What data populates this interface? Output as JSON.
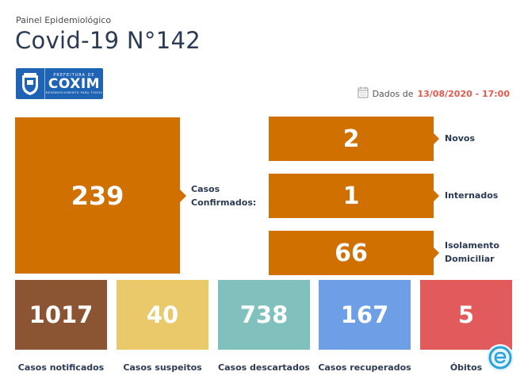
{
  "header": {
    "subtitle": "Painel Epidemiológico",
    "title": "Covid-19 N°142"
  },
  "logo": {
    "top_text": "PREFEITURA DE",
    "main_text": "COXIM",
    "bottom_text": "DESENVOLVIMENTO PARA TODOS"
  },
  "date": {
    "prefix": "Dados de ",
    "value": "13/08/2020 - 17:00"
  },
  "confirmed": {
    "value": "239",
    "label_line1": "Casos",
    "label_line2": "Confirmados:"
  },
  "breakdown": [
    {
      "value": "2",
      "label_line1": "Novos",
      "label_line2": ""
    },
    {
      "value": "1",
      "label_line1": "Internados",
      "label_line2": ""
    },
    {
      "value": "66",
      "label_line1": "Isolamento",
      "label_line2": "Domiciliar"
    }
  ],
  "stats": [
    {
      "value": "1017",
      "label": "Casos notificados",
      "color": "#8b5433"
    },
    {
      "value": "40",
      "label": "Casos suspeitos",
      "color": "#e9c969"
    },
    {
      "value": "738",
      "label": "Casos descartados",
      "color": "#80c0bd"
    },
    {
      "value": "167",
      "label": "Casos recuperados",
      "color": "#6d9ee6"
    },
    {
      "value": "5",
      "label": "Óbitos",
      "color": "#e15a5c"
    }
  ],
  "colors": {
    "orange": "#d07000",
    "title_navy": "#2b3a55",
    "date_red": "#e05a4e"
  }
}
